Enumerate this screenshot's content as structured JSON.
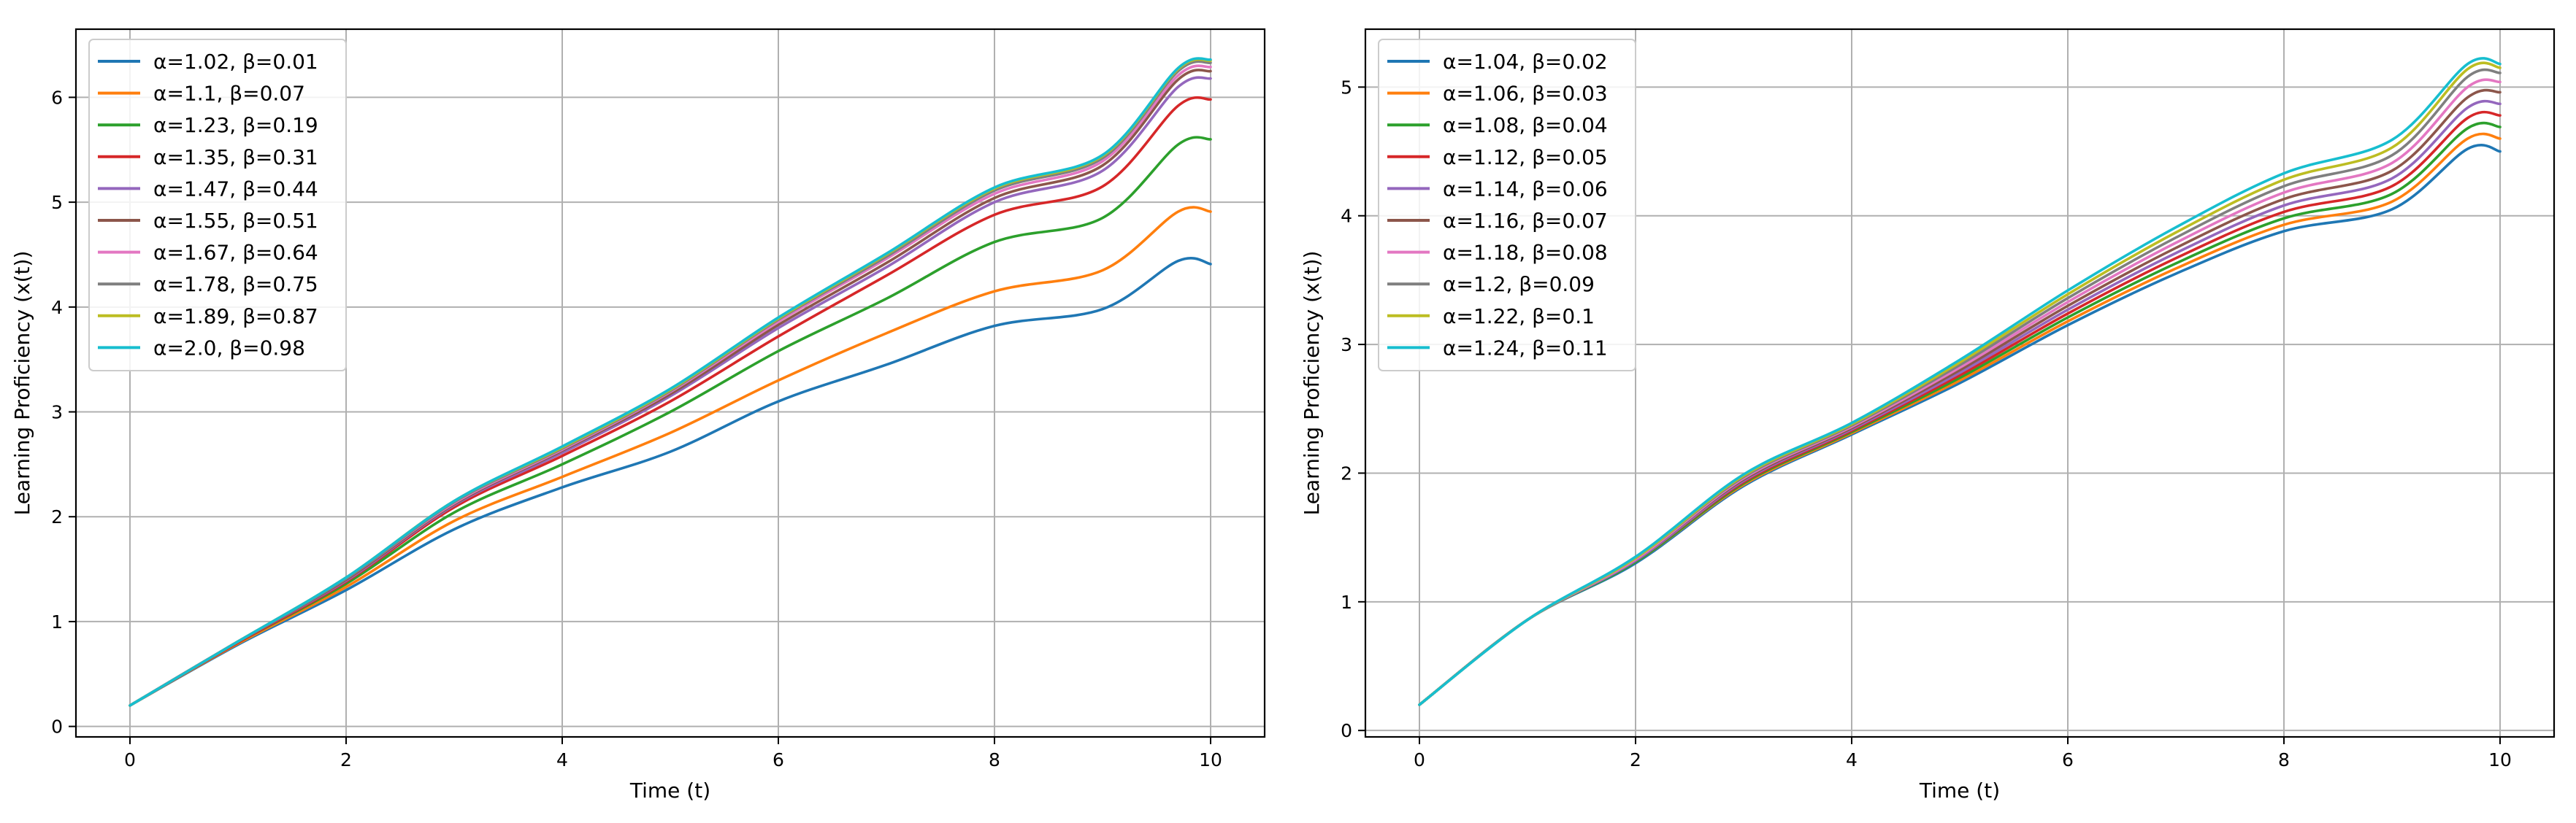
{
  "chart_data": [
    {
      "type": "line",
      "xlabel": "Time (t)",
      "ylabel": "Learning Proficiency (x(t))",
      "xlim": [
        -0.5,
        10.5
      ],
      "ylim": [
        -0.1,
        6.65
      ],
      "xticks": [
        0,
        2,
        4,
        6,
        8,
        10
      ],
      "yticks": [
        0,
        1,
        2,
        3,
        4,
        5,
        6
      ],
      "xtick_labels": [
        "0",
        "2",
        "4",
        "6",
        "8",
        "10"
      ],
      "ytick_labels": [
        "0",
        "1",
        "2",
        "3",
        "4",
        "5",
        "6"
      ],
      "grid": true,
      "legend_position": "top-left",
      "x": [
        0,
        1,
        2,
        3,
        4,
        5,
        6,
        7,
        8,
        9,
        9.7,
        10
      ],
      "series": [
        {
          "name": "α=1.02, β=0.01",
          "color": "#1f77b4",
          "values": [
            0.2,
            0.78,
            1.3,
            1.88,
            2.28,
            2.62,
            3.1,
            3.45,
            3.82,
            3.98,
            4.44,
            4.41
          ]
        },
        {
          "name": "α=1.1, β=0.07",
          "color": "#ff7f0e",
          "values": [
            0.2,
            0.79,
            1.33,
            1.96,
            2.38,
            2.8,
            3.3,
            3.75,
            4.15,
            4.35,
            4.91,
            4.91
          ]
        },
        {
          "name": "α=1.23, β=0.19",
          "color": "#2ca02c",
          "values": [
            0.2,
            0.8,
            1.36,
            2.04,
            2.5,
            3.0,
            3.58,
            4.08,
            4.62,
            4.85,
            5.55,
            5.6
          ]
        },
        {
          "name": "α=1.35, β=0.31",
          "color": "#d62728",
          "values": [
            0.2,
            0.8,
            1.38,
            2.09,
            2.58,
            3.1,
            3.72,
            4.3,
            4.88,
            5.15,
            5.92,
            5.98
          ]
        },
        {
          "name": "α=1.47, β=0.44",
          "color": "#9467bd",
          "values": [
            0.2,
            0.81,
            1.39,
            2.11,
            2.61,
            3.15,
            3.8,
            4.38,
            5.0,
            5.3,
            6.1,
            6.18
          ]
        },
        {
          "name": "α=1.55, β=0.51",
          "color": "#8c564b",
          "values": [
            0.2,
            0.81,
            1.4,
            2.12,
            2.63,
            3.17,
            3.83,
            4.42,
            5.04,
            5.35,
            6.17,
            6.25
          ]
        },
        {
          "name": "α=1.67, β=0.64",
          "color": "#e377c2",
          "values": [
            0.2,
            0.81,
            1.41,
            2.13,
            2.64,
            3.19,
            3.86,
            4.46,
            5.08,
            5.39,
            6.21,
            6.29
          ]
        },
        {
          "name": "α=1.78, β=0.75",
          "color": "#7f7f7f",
          "values": [
            0.2,
            0.81,
            1.41,
            2.14,
            2.65,
            3.2,
            3.88,
            4.48,
            5.11,
            5.42,
            6.25,
            6.33
          ]
        },
        {
          "name": "α=1.89, β=0.87",
          "color": "#bcbd22",
          "values": [
            0.2,
            0.81,
            1.42,
            2.15,
            2.66,
            3.21,
            3.89,
            4.5,
            5.13,
            5.44,
            6.27,
            6.35
          ]
        },
        {
          "name": "α=2.0, β=0.98",
          "color": "#17becf",
          "values": [
            0.2,
            0.81,
            1.42,
            2.15,
            2.67,
            3.22,
            3.9,
            4.51,
            5.14,
            5.45,
            6.28,
            6.36
          ]
        }
      ]
    },
    {
      "type": "line",
      "xlabel": "Time (t)",
      "ylabel": "Learning Proficiency (x(t))",
      "xlim": [
        -0.5,
        10.5
      ],
      "ylim": [
        -0.05,
        5.45
      ],
      "xticks": [
        0,
        2,
        4,
        6,
        8,
        10
      ],
      "yticks": [
        0,
        1,
        2,
        3,
        4,
        5
      ],
      "xtick_labels": [
        "0",
        "2",
        "4",
        "6",
        "8",
        "10"
      ],
      "ytick_labels": [
        "0",
        "1",
        "2",
        "3",
        "4",
        "5"
      ],
      "grid": true,
      "legend_position": "top-left",
      "x": [
        0,
        1,
        2,
        3,
        4,
        5,
        6,
        7,
        8,
        9,
        9.7,
        10
      ],
      "series": [
        {
          "name": "α=1.04, β=0.02",
          "color": "#1f77b4",
          "values": [
            0.2,
            0.86,
            1.3,
            1.9,
            2.3,
            2.7,
            3.15,
            3.55,
            3.88,
            4.05,
            4.52,
            4.5
          ]
        },
        {
          "name": "α=1.06, β=0.03",
          "color": "#ff7f0e",
          "values": [
            0.2,
            0.86,
            1.31,
            1.91,
            2.31,
            2.72,
            3.18,
            3.59,
            3.93,
            4.11,
            4.6,
            4.6
          ]
        },
        {
          "name": "α=1.08, β=0.04",
          "color": "#2ca02c",
          "values": [
            0.2,
            0.86,
            1.31,
            1.92,
            2.32,
            2.74,
            3.21,
            3.63,
            3.98,
            4.17,
            4.68,
            4.69
          ]
        },
        {
          "name": "α=1.12, β=0.05",
          "color": "#d62728",
          "values": [
            0.2,
            0.86,
            1.32,
            1.93,
            2.33,
            2.76,
            3.24,
            3.67,
            4.03,
            4.23,
            4.76,
            4.78
          ]
        },
        {
          "name": "α=1.14, β=0.06",
          "color": "#9467bd",
          "values": [
            0.2,
            0.86,
            1.32,
            1.94,
            2.34,
            2.78,
            3.27,
            3.71,
            4.08,
            4.29,
            4.84,
            4.87
          ]
        },
        {
          "name": "α=1.16, β=0.07",
          "color": "#8c564b",
          "values": [
            0.2,
            0.86,
            1.33,
            1.95,
            2.35,
            2.8,
            3.3,
            3.75,
            4.13,
            4.35,
            4.92,
            4.96
          ]
        },
        {
          "name": "α=1.18, β=0.08",
          "color": "#e377c2",
          "values": [
            0.2,
            0.86,
            1.33,
            1.96,
            2.36,
            2.82,
            3.33,
            3.79,
            4.18,
            4.41,
            5.0,
            5.04
          ]
        },
        {
          "name": "α=1.2, β=0.09",
          "color": "#7f7f7f",
          "values": [
            0.2,
            0.86,
            1.34,
            1.97,
            2.37,
            2.84,
            3.36,
            3.83,
            4.23,
            4.47,
            5.08,
            5.11
          ]
        },
        {
          "name": "α=1.22, β=0.1",
          "color": "#bcbd22",
          "values": [
            0.2,
            0.86,
            1.34,
            1.98,
            2.38,
            2.86,
            3.39,
            3.87,
            4.28,
            4.53,
            5.14,
            5.15
          ]
        },
        {
          "name": "α=1.24, β=0.11",
          "color": "#17becf",
          "values": [
            0.2,
            0.86,
            1.35,
            1.99,
            2.39,
            2.88,
            3.42,
            3.91,
            4.33,
            4.59,
            5.18,
            5.18
          ]
        }
      ]
    }
  ]
}
